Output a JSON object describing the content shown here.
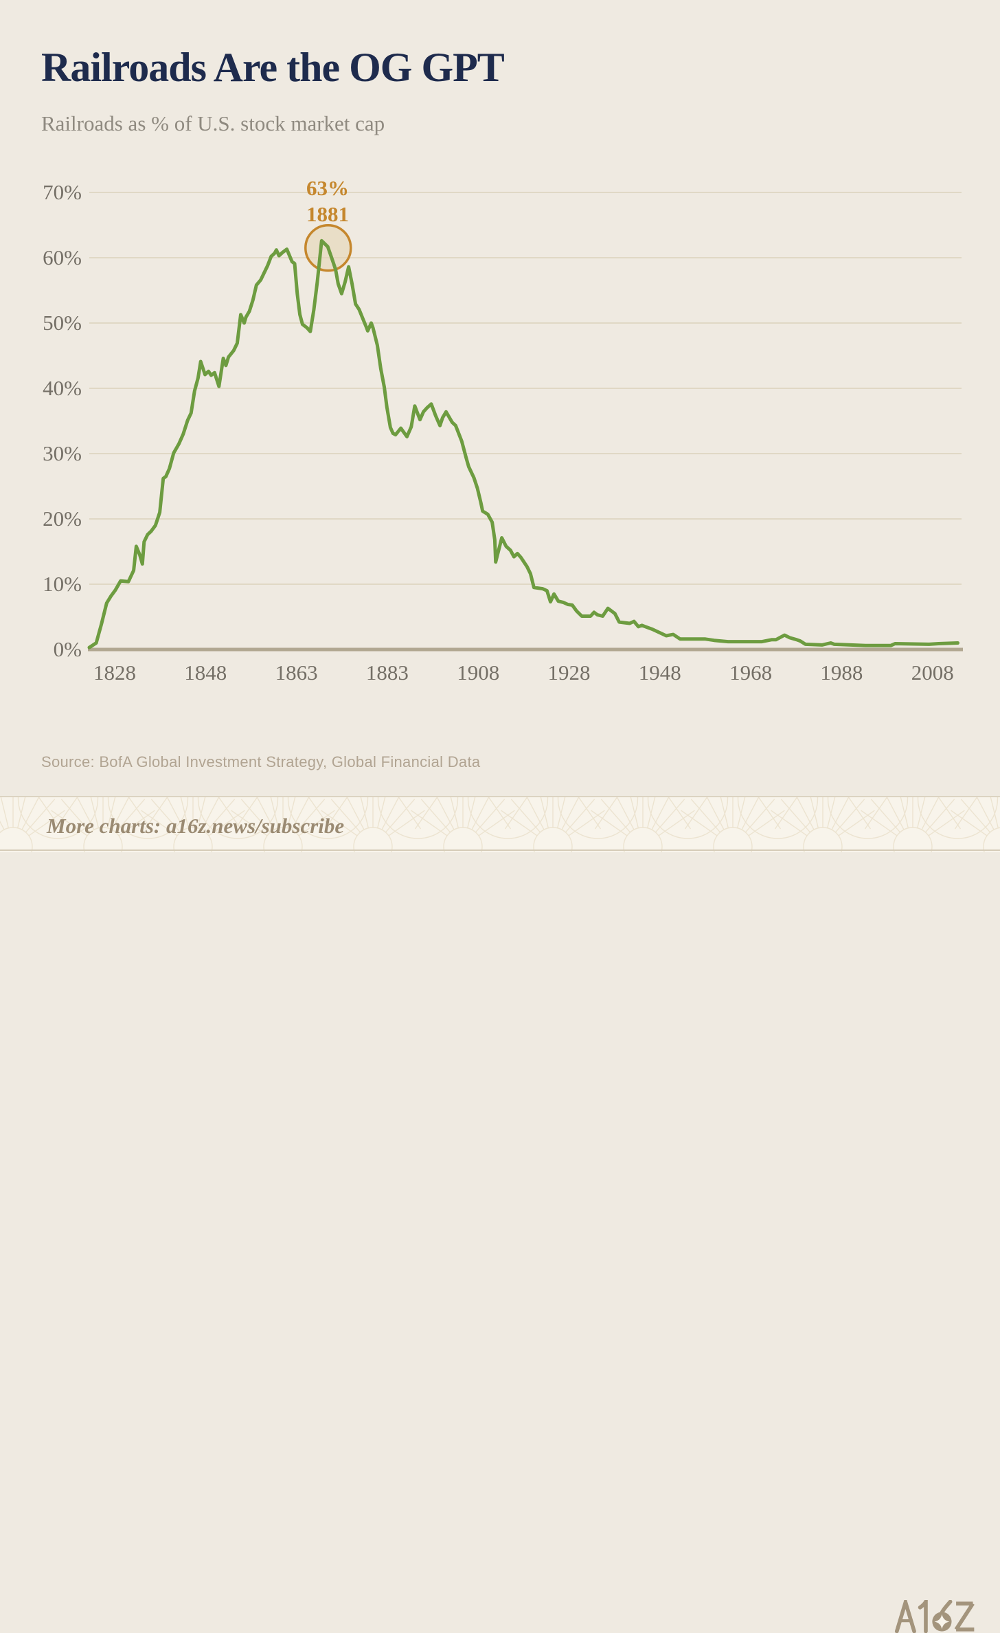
{
  "header": {
    "title": "Railroads Are the OG GPT",
    "subtitle": "Railroads as % of U.S. stock market cap"
  },
  "theme": {
    "background": "#efeae1",
    "title_navy": "#1e2b4d",
    "line_green": "#6d9c40",
    "accent_ochre": "#c5872d",
    "highlight_fill": "#e3d3b3",
    "gridline": "#e0d8c5",
    "baseline": "#b1a791",
    "tick_text": "#746f66",
    "footer_background": "#f8f4eb",
    "footer_taupe": "#9a8a72",
    "logo_taupe": "#a3947c"
  },
  "chart_data": {
    "type": "line",
    "title": "Railroads Are the OG GPT",
    "subtitle": "Railroads as % of U.S. stock market cap",
    "ylabel": "% of U.S. stock market cap",
    "y_axis": {
      "min": 0,
      "max": 70,
      "unit": "%",
      "grid": true
    },
    "y_ticks": [
      {
        "label": "0%",
        "value": 0
      },
      {
        "label": "10%",
        "value": 10
      },
      {
        "label": "20%",
        "value": 20
      },
      {
        "label": "30%",
        "value": 30
      },
      {
        "label": "40%",
        "value": 40
      },
      {
        "label": "50%",
        "value": 50
      },
      {
        "label": "60%",
        "value": 60
      },
      {
        "label": "70%",
        "value": 70
      }
    ],
    "x_tick_labels": [
      "1828",
      "1848",
      "1863",
      "1883",
      "1908",
      "1928",
      "1948",
      "1968",
      "1988",
      "2008"
    ],
    "annotation": {
      "value_label": "63%",
      "year_label": "1881",
      "anchor": [
        0.2745,
        61.5
      ]
    },
    "series": [
      {
        "name": "Railroads as % of U.S. stock market cap",
        "color": "#6d9c40",
        "points": [
          [
            0.0,
            0.3
          ],
          [
            0.008,
            1.0
          ],
          [
            0.014,
            3.9
          ],
          [
            0.02,
            7.1
          ],
          [
            0.025,
            8.2
          ],
          [
            0.03,
            9.1
          ],
          [
            0.036,
            10.5
          ],
          [
            0.045,
            10.4
          ],
          [
            0.051,
            12.1
          ],
          [
            0.054,
            15.8
          ],
          [
            0.058,
            14.5
          ],
          [
            0.061,
            13.1
          ],
          [
            0.063,
            16.5
          ],
          [
            0.067,
            17.6
          ],
          [
            0.071,
            18.1
          ],
          [
            0.076,
            19.0
          ],
          [
            0.079,
            20.2
          ],
          [
            0.081,
            21.0
          ],
          [
            0.085,
            26.2
          ],
          [
            0.088,
            26.5
          ],
          [
            0.092,
            27.7
          ],
          [
            0.097,
            30.1
          ],
          [
            0.103,
            31.5
          ],
          [
            0.108,
            33.0
          ],
          [
            0.113,
            35.1
          ],
          [
            0.117,
            36.2
          ],
          [
            0.121,
            39.6
          ],
          [
            0.125,
            41.6
          ],
          [
            0.128,
            44.1
          ],
          [
            0.133,
            42.1
          ],
          [
            0.137,
            42.6
          ],
          [
            0.14,
            42.0
          ],
          [
            0.144,
            42.4
          ],
          [
            0.149,
            40.3
          ],
          [
            0.154,
            44.6
          ],
          [
            0.157,
            43.5
          ],
          [
            0.16,
            44.8
          ],
          [
            0.166,
            45.8
          ],
          [
            0.17,
            46.9
          ],
          [
            0.174,
            51.3
          ],
          [
            0.178,
            50.0
          ],
          [
            0.18,
            50.9
          ],
          [
            0.184,
            51.8
          ],
          [
            0.188,
            53.5
          ],
          [
            0.192,
            55.8
          ],
          [
            0.197,
            56.6
          ],
          [
            0.205,
            58.8
          ],
          [
            0.209,
            60.2
          ],
          [
            0.213,
            60.7
          ],
          [
            0.215,
            61.2
          ],
          [
            0.218,
            60.3
          ],
          [
            0.222,
            60.8
          ],
          [
            0.227,
            61.3
          ],
          [
            0.233,
            59.4
          ],
          [
            0.236,
            59.1
          ],
          [
            0.239,
            54.5
          ],
          [
            0.242,
            51.3
          ],
          [
            0.245,
            49.8
          ],
          [
            0.25,
            49.3
          ],
          [
            0.254,
            48.7
          ],
          [
            0.258,
            52.0
          ],
          [
            0.262,
            56.3
          ],
          [
            0.267,
            62.6
          ],
          [
            0.274,
            61.7
          ],
          [
            0.279,
            59.8
          ],
          [
            0.283,
            58.2
          ],
          [
            0.286,
            56.0
          ],
          [
            0.29,
            54.5
          ],
          [
            0.294,
            56.3
          ],
          [
            0.298,
            58.6
          ],
          [
            0.302,
            56.0
          ],
          [
            0.306,
            52.9
          ],
          [
            0.31,
            52.1
          ],
          [
            0.314,
            50.8
          ],
          [
            0.318,
            49.5
          ],
          [
            0.32,
            48.8
          ],
          [
            0.324,
            50.0
          ],
          [
            0.326,
            49.3
          ],
          [
            0.331,
            46.6
          ],
          [
            0.335,
            43.0
          ],
          [
            0.339,
            40.2
          ],
          [
            0.342,
            37.1
          ],
          [
            0.346,
            34.0
          ],
          [
            0.349,
            33.1
          ],
          [
            0.352,
            32.9
          ],
          [
            0.358,
            33.9
          ],
          [
            0.365,
            32.6
          ],
          [
            0.37,
            34.1
          ],
          [
            0.374,
            37.3
          ],
          [
            0.38,
            35.2
          ],
          [
            0.384,
            36.4
          ],
          [
            0.388,
            37.0
          ],
          [
            0.393,
            37.6
          ],
          [
            0.398,
            35.8
          ],
          [
            0.403,
            34.3
          ],
          [
            0.406,
            35.5
          ],
          [
            0.41,
            36.4
          ],
          [
            0.417,
            34.8
          ],
          [
            0.421,
            34.3
          ],
          [
            0.428,
            31.9
          ],
          [
            0.433,
            29.4
          ],
          [
            0.436,
            28.0
          ],
          [
            0.442,
            26.3
          ],
          [
            0.446,
            24.7
          ],
          [
            0.45,
            22.5
          ],
          [
            0.452,
            21.2
          ],
          [
            0.458,
            20.7
          ],
          [
            0.463,
            19.5
          ],
          [
            0.466,
            16.8
          ],
          [
            0.467,
            13.4
          ],
          [
            0.474,
            17.1
          ],
          [
            0.479,
            15.8
          ],
          [
            0.484,
            15.2
          ],
          [
            0.488,
            14.2
          ],
          [
            0.492,
            14.7
          ],
          [
            0.496,
            14.1
          ],
          [
            0.503,
            12.7
          ],
          [
            0.507,
            11.6
          ],
          [
            0.511,
            9.5
          ],
          [
            0.521,
            9.3
          ],
          [
            0.526,
            9.0
          ],
          [
            0.53,
            7.3
          ],
          [
            0.534,
            8.5
          ],
          [
            0.539,
            7.4
          ],
          [
            0.545,
            7.2
          ],
          [
            0.55,
            6.9
          ],
          [
            0.555,
            6.8
          ],
          [
            0.56,
            5.9
          ],
          [
            0.566,
            5.1
          ],
          [
            0.576,
            5.1
          ],
          [
            0.58,
            5.7
          ],
          [
            0.584,
            5.3
          ],
          [
            0.59,
            5.1
          ],
          [
            0.596,
            6.3
          ],
          [
            0.604,
            5.5
          ],
          [
            0.609,
            4.2
          ],
          [
            0.621,
            4.0
          ],
          [
            0.626,
            4.3
          ],
          [
            0.631,
            3.5
          ],
          [
            0.635,
            3.7
          ],
          [
            0.639,
            3.5
          ],
          [
            0.647,
            3.1
          ],
          [
            0.655,
            2.6
          ],
          [
            0.663,
            2.1
          ],
          [
            0.671,
            2.3
          ],
          [
            0.679,
            1.6
          ],
          [
            0.708,
            1.6
          ],
          [
            0.718,
            1.4
          ],
          [
            0.734,
            1.2
          ],
          [
            0.773,
            1.2
          ],
          [
            0.784,
            1.5
          ],
          [
            0.789,
            1.5
          ],
          [
            0.799,
            2.2
          ],
          [
            0.805,
            1.8
          ],
          [
            0.813,
            1.5
          ],
          [
            0.817,
            1.3
          ],
          [
            0.823,
            0.8
          ],
          [
            0.842,
            0.7
          ],
          [
            0.852,
            1.0
          ],
          [
            0.856,
            0.8
          ],
          [
            0.892,
            0.6
          ],
          [
            0.921,
            0.6
          ],
          [
            0.926,
            0.9
          ],
          [
            0.965,
            0.8
          ],
          [
            0.976,
            0.9
          ],
          [
            0.998,
            1.0
          ]
        ]
      }
    ],
    "legend": "none"
  },
  "source": {
    "text": "Source: BofA Global Investment Strategy, Global Financial Data"
  },
  "footer": {
    "link_text": "More charts: a16z.news/subscribe",
    "logo_text": "A16Z"
  }
}
